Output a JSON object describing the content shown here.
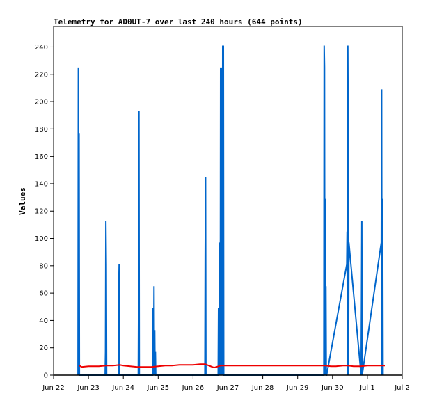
{
  "chart_data": {
    "type": "line",
    "title": "Telemetry for AD0UT-7 over last 240 hours (644 points)",
    "xlabel": "",
    "ylabel": "Values",
    "ylim": [
      0,
      255
    ],
    "yticks": [
      0,
      20,
      40,
      60,
      80,
      100,
      120,
      140,
      160,
      180,
      200,
      220,
      240
    ],
    "x_axis": {
      "min_day": 0,
      "max_day": 10,
      "tick_days": [
        0,
        1,
        2,
        3,
        4,
        5,
        6,
        7,
        8,
        9,
        10
      ],
      "tick_labels": [
        "Jun 22",
        "Jun 23",
        "Jun 24",
        "Jun 25",
        "Jun 26",
        "Jun 27",
        "Jun 28",
        "Jun 29",
        "Jun 30",
        "Jul 1",
        "Jul 2"
      ]
    },
    "grid": false,
    "series": [
      {
        "color": "#0066cc",
        "x": [
          0.7,
          0.71,
          0.72,
          0.73,
          0.74,
          0.75,
          1.48,
          1.49,
          1.5,
          1.51,
          1.52,
          1.86,
          1.87,
          1.88,
          1.89,
          2.43,
          2.44,
          2.45,
          2.46,
          2.84,
          2.85,
          2.86,
          2.87,
          2.88,
          2.89,
          2.9,
          2.91,
          2.92,
          2.93,
          4.34,
          4.35,
          4.36,
          4.37,
          4.72,
          4.73,
          4.74,
          4.75,
          4.76,
          4.77,
          4.78,
          4.79,
          4.8,
          4.81,
          4.82,
          4.83,
          4.84,
          4.85,
          4.86,
          4.87,
          4.88,
          4.89,
          7.75,
          7.76,
          7.77,
          7.78,
          7.79,
          7.8,
          7.81,
          7.82,
          7.83,
          8.41,
          8.42,
          8.43,
          8.44,
          8.45,
          8.46,
          8.47,
          8.82,
          8.83,
          8.84,
          8.85,
          9.4,
          9.41,
          9.42,
          9.43,
          9.44,
          9.45
        ],
        "y": [
          0,
          225,
          0,
          177,
          0,
          0,
          0,
          17,
          113,
          81,
          0,
          0,
          65,
          81,
          0,
          0,
          65,
          193,
          0,
          0,
          49,
          0,
          17,
          65,
          0,
          33,
          0,
          17,
          0,
          0,
          89,
          145,
          0,
          0,
          49,
          0,
          49,
          0,
          97,
          0,
          225,
          0,
          145,
          0,
          225,
          0,
          241,
          0,
          241,
          0,
          0,
          0,
          241,
          225,
          0,
          129,
          0,
          65,
          0,
          0,
          81,
          105,
          0,
          241,
          177,
          0,
          97,
          0,
          49,
          113,
          0,
          97,
          209,
          0,
          129,
          97,
          0
        ]
      },
      {
        "color": "#ee0000",
        "x": [
          0.74,
          0.8,
          1.0,
          1.3,
          1.5,
          1.7,
          1.9,
          2.0,
          2.2,
          2.4,
          2.6,
          2.8,
          3.0,
          3.2,
          3.4,
          3.6,
          3.8,
          4.0,
          4.2,
          4.35,
          4.5,
          4.6,
          4.8,
          5.0,
          5.5,
          6.0,
          6.5,
          7.0,
          7.5,
          7.8,
          7.95,
          8.1,
          8.3,
          8.45,
          8.6,
          8.8,
          9.0,
          9.3,
          9.5
        ],
        "y": [
          7,
          6,
          6.5,
          6.5,
          7,
          7,
          7.5,
          7,
          6.5,
          6,
          6,
          6,
          6.5,
          7,
          7,
          7.5,
          7.5,
          7.5,
          8,
          8,
          6.5,
          5.5,
          7,
          7,
          7,
          7,
          7,
          7,
          7,
          7,
          6.5,
          6.5,
          7,
          7,
          6.5,
          6.5,
          7,
          7,
          7
        ]
      }
    ]
  }
}
